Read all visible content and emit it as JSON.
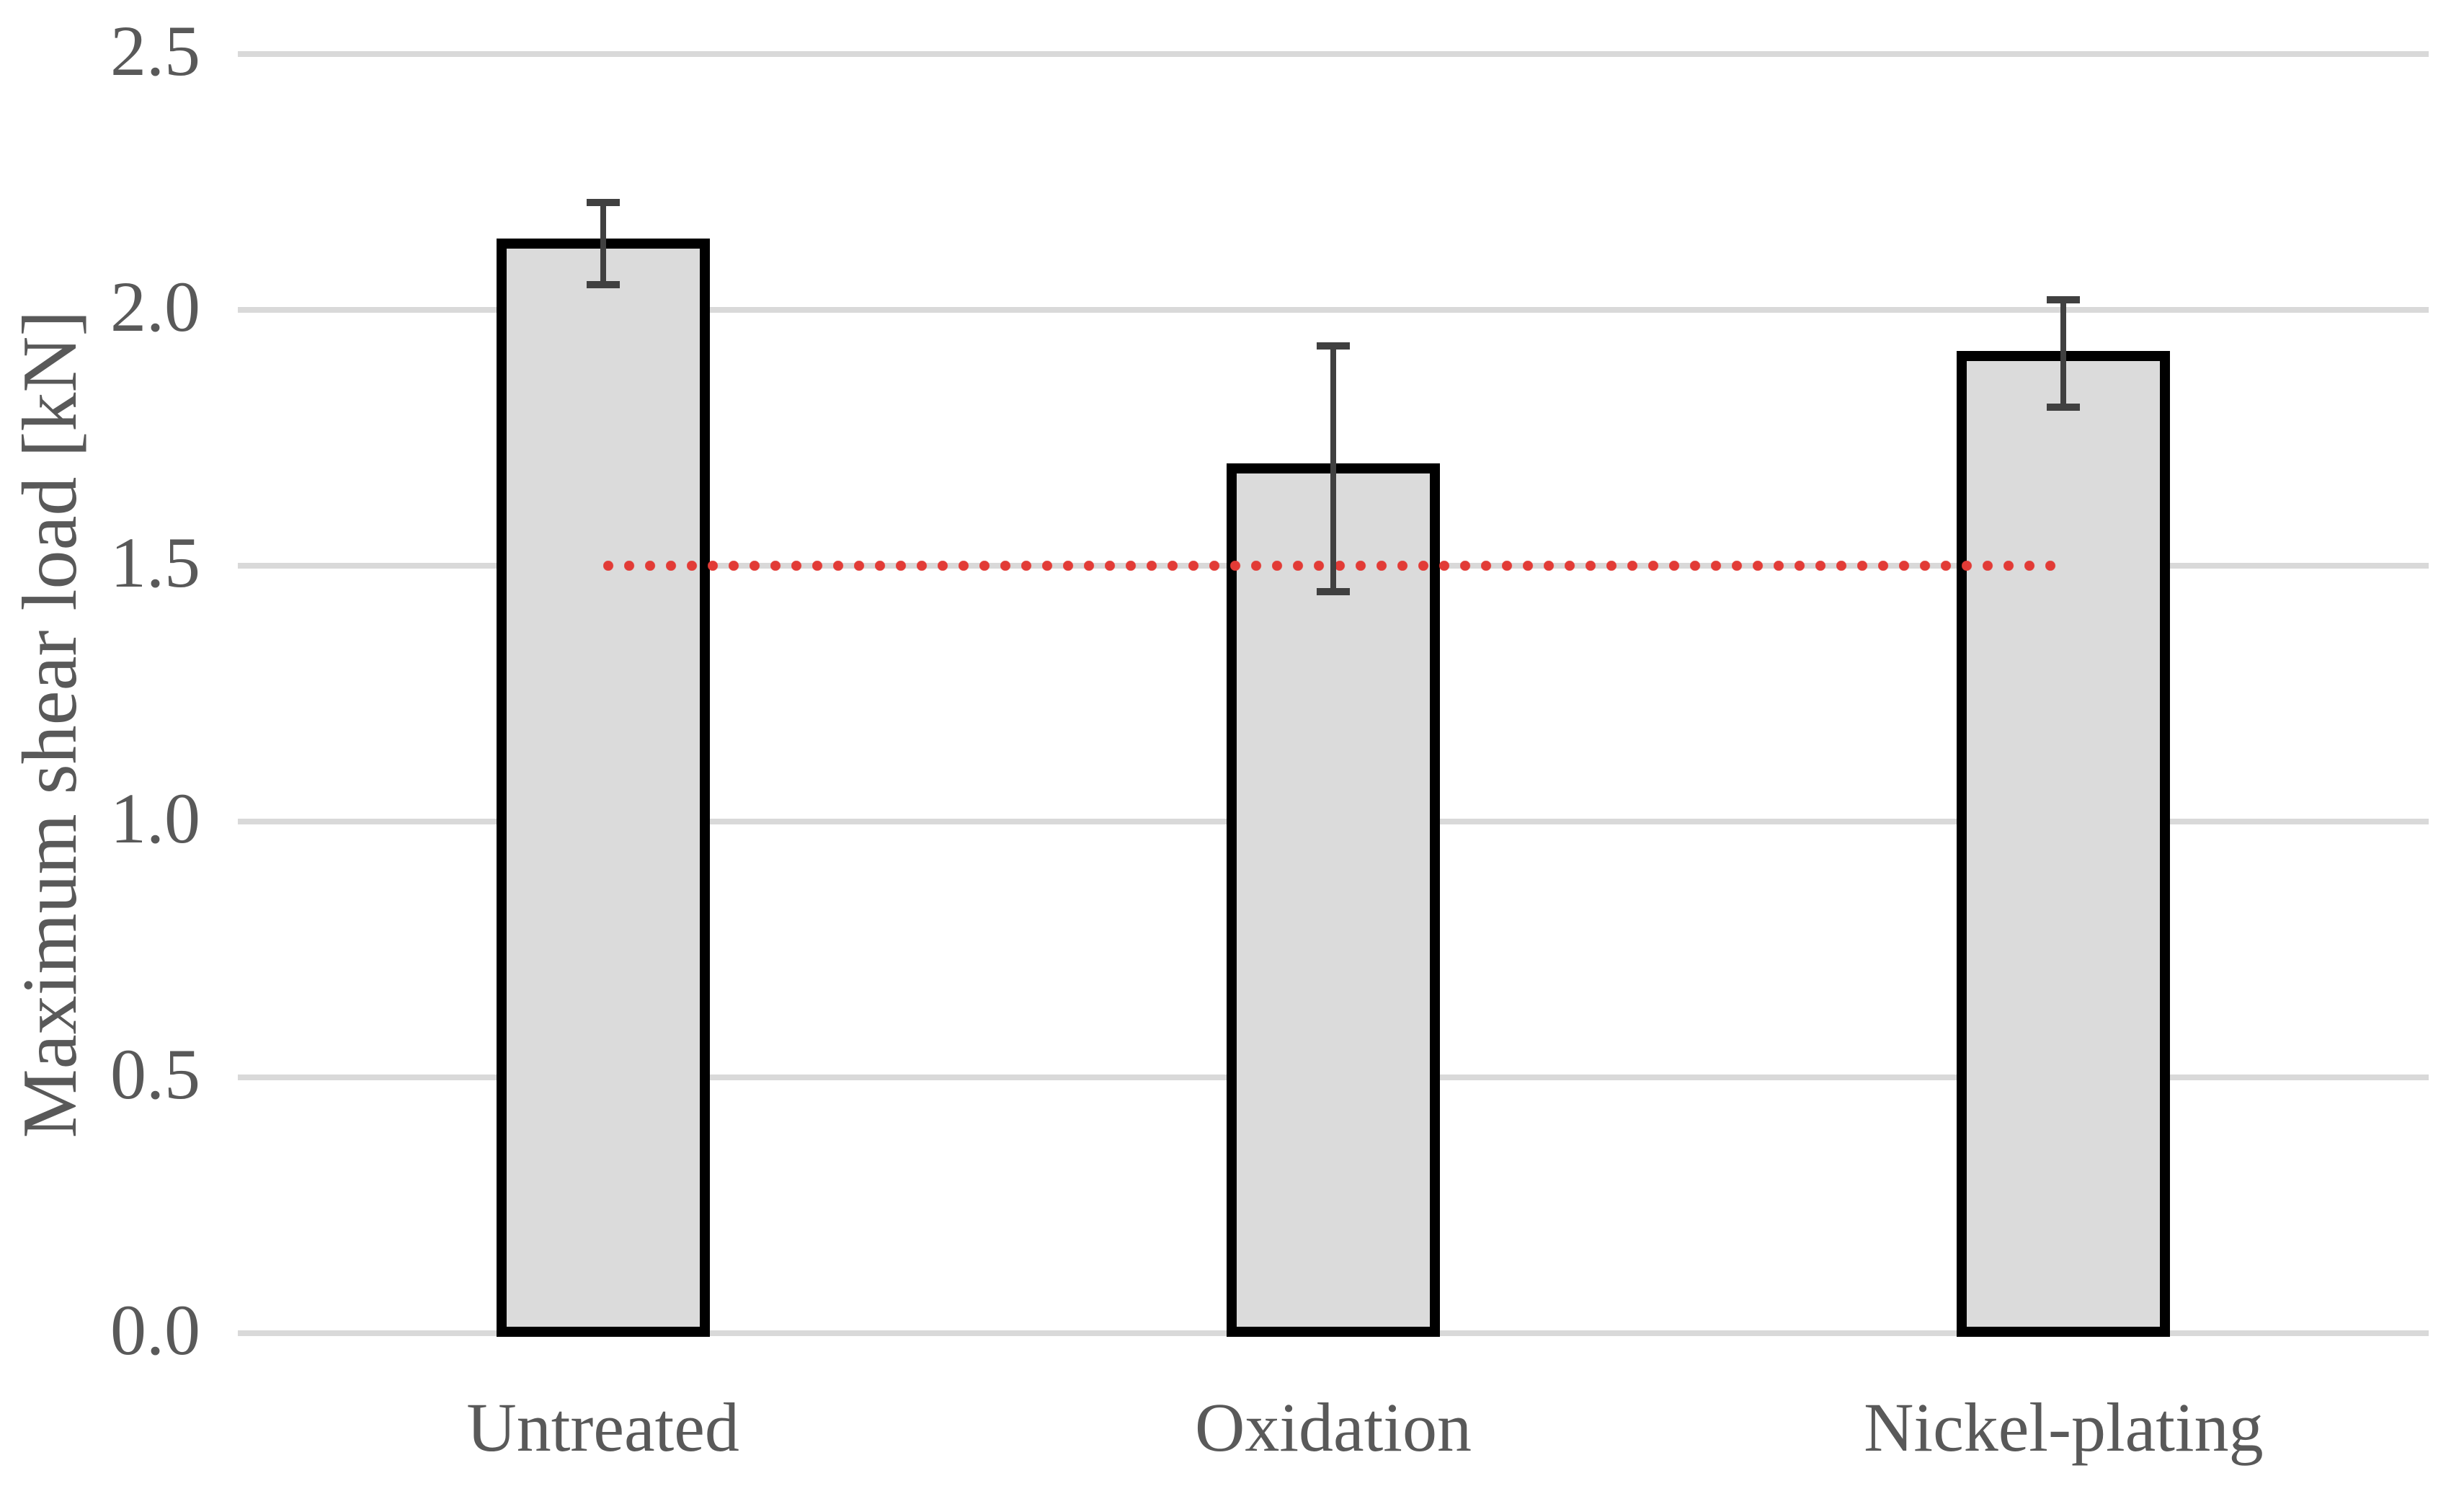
{
  "chart_data": {
    "type": "bar",
    "title": "",
    "categories": [
      "Untreated",
      "Oxidation",
      "Nickel-plating"
    ],
    "values": [
      2.14,
      1.7,
      1.92
    ],
    "error_top": [
      2.21,
      1.93,
      2.02
    ],
    "error_bottom": [
      2.05,
      1.45,
      1.81
    ],
    "reference_line": {
      "value": 1.5,
      "style": "dotted",
      "color": "#e23b36",
      "spans_from_category": 0,
      "spans_to_category": 2
    },
    "xlabel": "",
    "ylabel": "Maximum shear load [kN]",
    "ylim": [
      0.0,
      2.5
    ],
    "ytick_step": 0.5,
    "yticks": [
      "0.0",
      "0.5",
      "1.0",
      "1.5",
      "2.0",
      "2.5"
    ],
    "grid": true,
    "legend": false,
    "colors": {
      "bar_fill": "#dbdbdb",
      "bar_border": "#000000",
      "gridline": "#d9d9d9",
      "error_bar": "#404040",
      "text": "#595959",
      "background": "#ffffff"
    }
  }
}
